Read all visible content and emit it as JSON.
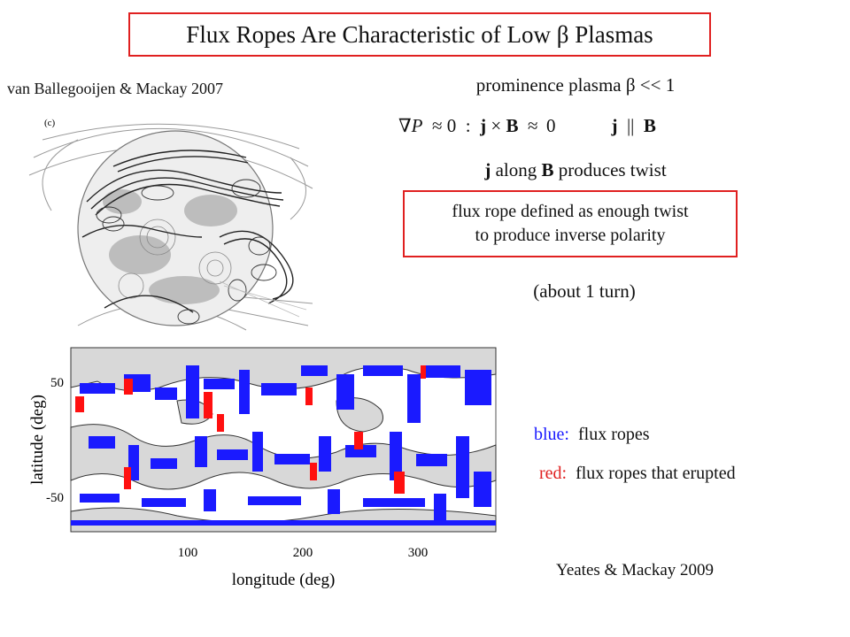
{
  "title": "Flux Ropes Are Characteristic of Low β Plasmas",
  "citation_top": "van Ballegooijen & Mackay 2007",
  "panel_label": "(c)",
  "prominence_line": "prominence plasma β << 1",
  "equation": {
    "grad_p": "∇P",
    "approx1": "≈ 0",
    "colon": ":",
    "j": "j",
    "times": "×",
    "B": "B",
    "approx2": "≈  0",
    "parallel_j": "j",
    "parallel": "||",
    "parallel_B": "B"
  },
  "twist_line": {
    "j": "j",
    "along": "along",
    "B": "B",
    "rest": "produces twist"
  },
  "definition": {
    "line1": "flux rope defined as enough twist",
    "line2": "to produce inverse polarity"
  },
  "turn_note": "(about 1 turn)",
  "map": {
    "ylabel": "latitude (deg)",
    "xlabel": "longitude (deg)",
    "yticks": [
      "50",
      "-50"
    ],
    "xticks": [
      "100",
      "200",
      "300"
    ],
    "colors": {
      "blue": "#1a1aff",
      "red": "#ff1010",
      "gray": "#d8d8d8"
    }
  },
  "legend": {
    "blue_key": "blue:",
    "blue_text": "flux ropes",
    "red_key": "red:",
    "red_text": "flux ropes that erupted"
  },
  "citation_bottom": "Yeates & Mackay 2009"
}
